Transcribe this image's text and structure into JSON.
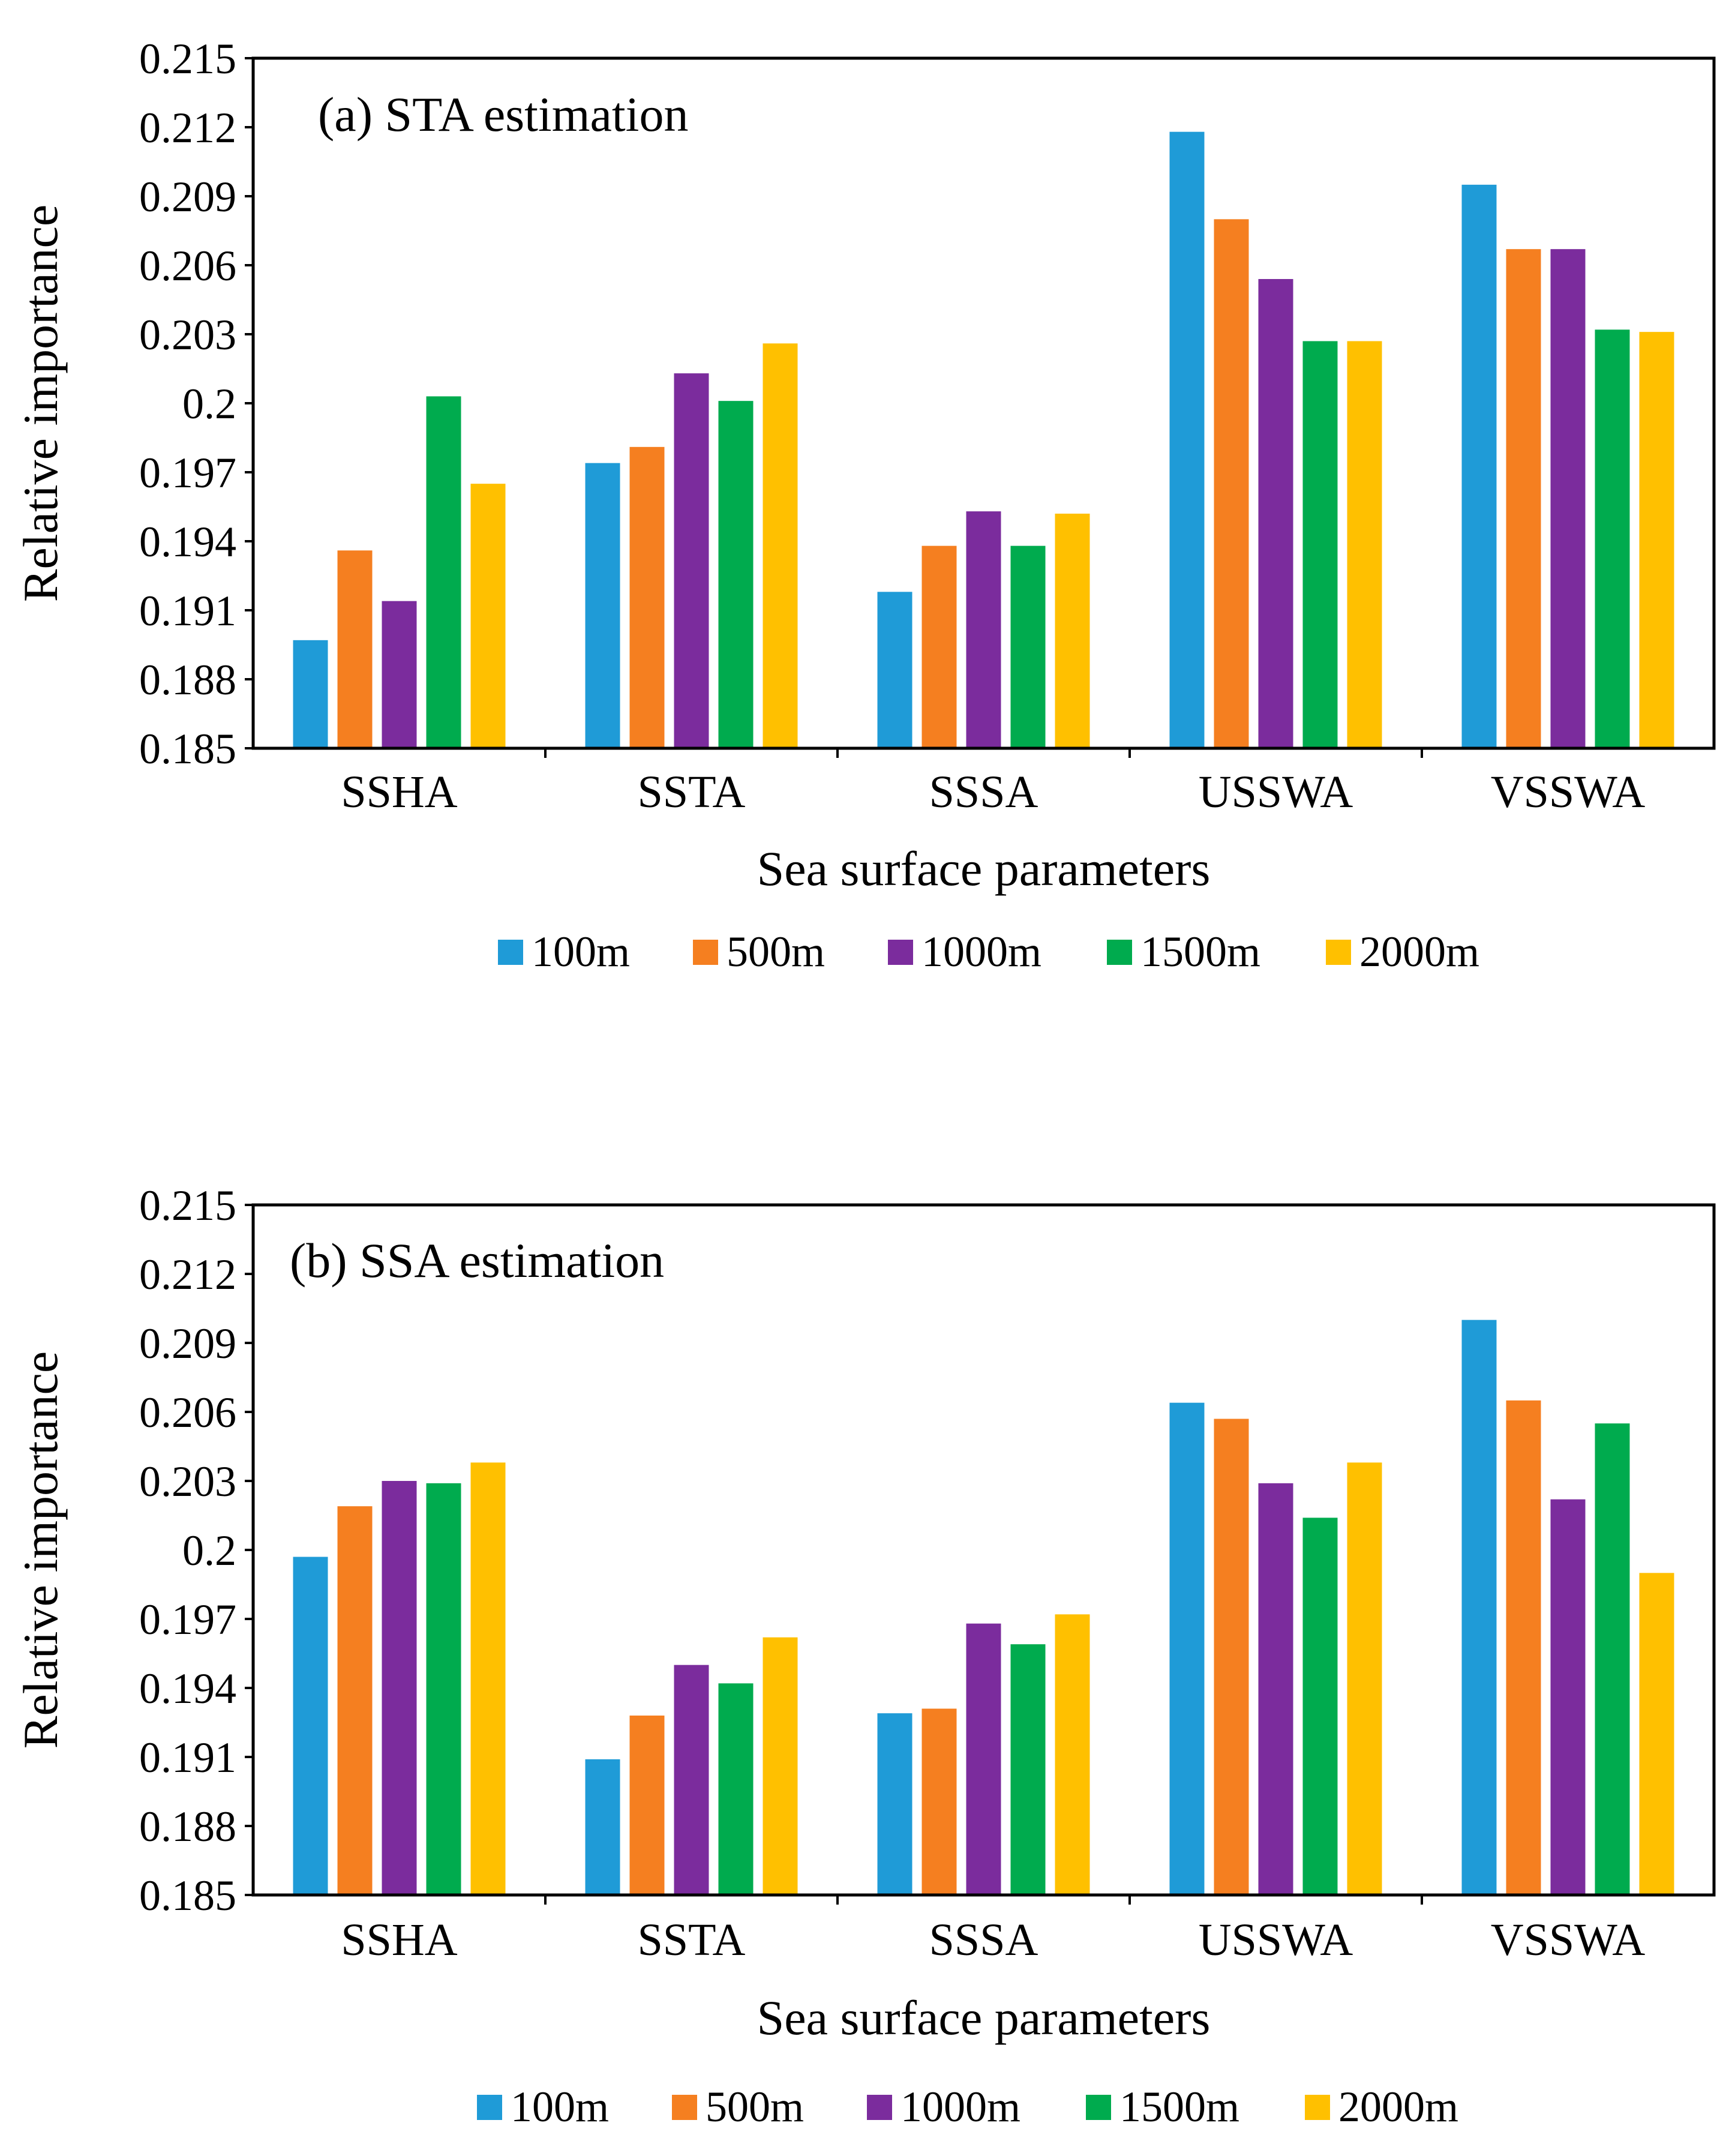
{
  "chart_data": [
    {
      "type": "bar",
      "title": "(a) STA estimation",
      "xlabel": "Sea surface parameters",
      "ylabel": "Relative importance",
      "ylim": [
        0.185,
        0.215
      ],
      "yticks": [
        "0.185",
        "0.188",
        "0.191",
        "0.194",
        "0.197",
        "0.2",
        "0.203",
        "0.206",
        "0.209",
        "0.212",
        "0.215"
      ],
      "categories": [
        "SSHA",
        "SSTA",
        "SSSA",
        "USSWA",
        "VSSWA"
      ],
      "legend_position": "bottom",
      "series": [
        {
          "name": "100m",
          "color": "#1f9bd7",
          "values": [
            0.1897,
            0.1974,
            0.1918,
            0.2118,
            0.2095
          ]
        },
        {
          "name": "500m",
          "color": "#f57f20",
          "values": [
            0.1936,
            0.1981,
            0.1938,
            0.208,
            0.2067
          ]
        },
        {
          "name": "1000m",
          "color": "#7b2c9d",
          "values": [
            0.1914,
            0.2013,
            0.1953,
            0.2054,
            0.2067
          ]
        },
        {
          "name": "1500m",
          "color": "#00ab4e",
          "values": [
            0.2003,
            0.2001,
            0.1938,
            0.2027,
            0.2032
          ]
        },
        {
          "name": "2000m",
          "color": "#ffc000",
          "values": [
            0.1965,
            0.2026,
            0.1952,
            0.2027,
            0.2031
          ]
        }
      ]
    },
    {
      "type": "bar",
      "title": "(b) SSA estimation",
      "xlabel": "Sea surface parameters",
      "ylabel": "Relative importance",
      "ylim": [
        0.185,
        0.215
      ],
      "yticks": [
        "0.185",
        "0.188",
        "0.191",
        "0.194",
        "0.197",
        "0.2",
        "0.203",
        "0.206",
        "0.209",
        "0.212",
        "0.215"
      ],
      "categories": [
        "SSHA",
        "SSTA",
        "SSSA",
        "USSWA",
        "VSSWA"
      ],
      "legend_position": "bottom",
      "series": [
        {
          "name": "100m",
          "color": "#1f9bd7",
          "values": [
            0.1997,
            0.1909,
            0.1929,
            0.2064,
            0.21
          ]
        },
        {
          "name": "500m",
          "color": "#f57f20",
          "values": [
            0.2019,
            0.1928,
            0.1931,
            0.2057,
            0.2065
          ]
        },
        {
          "name": "1000m",
          "color": "#7b2c9d",
          "values": [
            0.203,
            0.195,
            0.1968,
            0.2029,
            0.2022
          ]
        },
        {
          "name": "1500m",
          "color": "#00ab4e",
          "values": [
            0.2029,
            0.1942,
            0.1959,
            0.2014,
            0.2055
          ]
        },
        {
          "name": "2000m",
          "color": "#ffc000",
          "values": [
            0.2038,
            0.1962,
            0.1972,
            0.2038,
            0.199
          ]
        }
      ]
    }
  ]
}
